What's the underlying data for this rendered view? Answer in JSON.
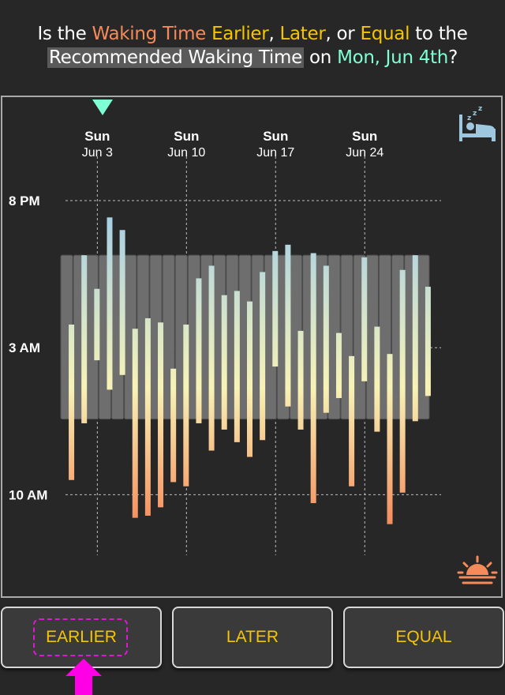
{
  "question": {
    "prefix": "Is the ",
    "subject": "Waking Time",
    "opt1": "Earlier",
    "sep1": ", ",
    "opt2": "Later",
    "sep2": ", or ",
    "opt3": "Equal",
    "middle": " to the",
    "reference": "Recommended Waking Time",
    "on": " on ",
    "date": "Mon, Jun 4th",
    "suffix": "?"
  },
  "colors": {
    "subject": "#f58a5a",
    "option": "#f5c500",
    "date": "#7fffd4",
    "button_text": "#f5c500",
    "recommended_band": "#6e6e6e",
    "bar_top": "#a5cfe6",
    "bar_mid": "#f7f3b6",
    "bar_bottom": "#f58a5a"
  },
  "icons": {
    "top_right": "sleeping-bed-icon",
    "bottom_right": "sunrise-icon",
    "marker": "selected-day-marker-icon",
    "pointer": "pointer-arrow-icon"
  },
  "chart_data": {
    "type": "bar",
    "description_axis": "x = calendar date, y = time of day (hours since noon; 8 = 8 PM, 15 = 3 AM, 22 = 10 AM)",
    "x_ticks": [
      {
        "day": "Sun",
        "date": "Jun 3",
        "index": 2
      },
      {
        "day": "Sun",
        "date": "Jun 10",
        "index": 9
      },
      {
        "day": "Sun",
        "date": "Jun 17",
        "index": 16
      },
      {
        "day": "Sun",
        "date": "Jun 24",
        "index": 23
      }
    ],
    "y_ticks": [
      {
        "label": "8 PM",
        "value": 8
      },
      {
        "label": "3 AM",
        "value": 15
      },
      {
        "label": "10 AM",
        "value": 22
      }
    ],
    "ylim": [
      5.8,
      25
    ],
    "selected_index": 2,
    "recommended": {
      "bed": 10.6,
      "wake": 18.4
    },
    "nights": [
      {
        "bed": 13.9,
        "wake": 21.3
      },
      {
        "bed": 10.6,
        "wake": 18.6
      },
      {
        "bed": 12.2,
        "wake": 15.6
      },
      {
        "bed": 8.8,
        "wake": 17.0
      },
      {
        "bed": 9.4,
        "wake": 16.3
      },
      {
        "bed": 14.1,
        "wake": 23.1
      },
      {
        "bed": 13.6,
        "wake": 23.0
      },
      {
        "bed": 13.8,
        "wake": 22.6
      },
      {
        "bed": 16.0,
        "wake": 21.4
      },
      {
        "bed": 13.9,
        "wake": 21.6
      },
      {
        "bed": 11.7,
        "wake": 18.6
      },
      {
        "bed": 11.1,
        "wake": 19.9
      },
      {
        "bed": 12.5,
        "wake": 18.9
      },
      {
        "bed": 12.3,
        "wake": 19.5
      },
      {
        "bed": 12.8,
        "wake": 20.2
      },
      {
        "bed": 11.4,
        "wake": 19.4
      },
      {
        "bed": 10.4,
        "wake": 15.9
      },
      {
        "bed": 10.1,
        "wake": 17.8
      },
      {
        "bed": 14.2,
        "wake": 18.9
      },
      {
        "bed": 10.5,
        "wake": 22.4
      },
      {
        "bed": 11.1,
        "wake": 18.1
      },
      {
        "bed": 14.3,
        "wake": 17.4
      },
      {
        "bed": 15.4,
        "wake": 21.6
      },
      {
        "bed": 10.7,
        "wake": 16.6
      },
      {
        "bed": 14.0,
        "wake": 19.0
      },
      {
        "bed": 15.3,
        "wake": 23.4
      },
      {
        "bed": 11.3,
        "wake": 21.9
      },
      {
        "bed": 10.6,
        "wake": 18.5
      },
      {
        "bed": 12.1,
        "wake": 17.3
      }
    ]
  },
  "buttons": {
    "earlier": "EARLIER",
    "later": "LATER",
    "equal": "EQUAL"
  }
}
